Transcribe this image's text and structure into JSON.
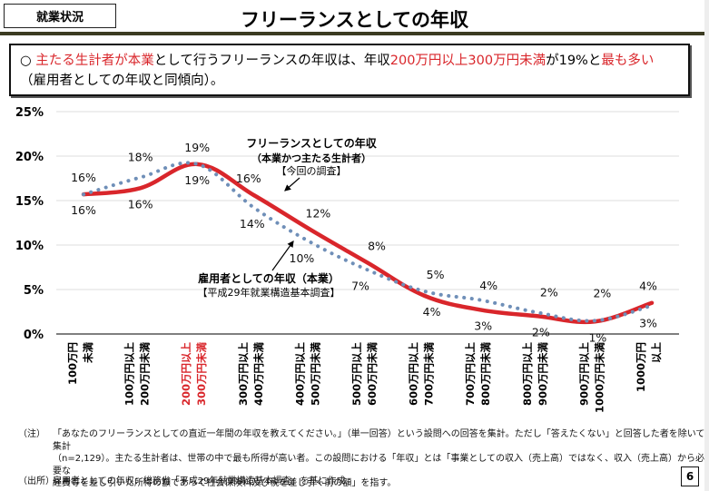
{
  "header": {
    "category": "就業状況",
    "title": "フリーランスとしての年収"
  },
  "summary": {
    "bullet": "○",
    "segments": [
      {
        "text": "主たる生計者が本業",
        "highlight": true
      },
      {
        "text": "として行うフリーランスの年収は、年収",
        "highlight": false
      },
      {
        "text": "200万円以上300万円未満",
        "highlight": true
      },
      {
        "text": "が19%と",
        "highlight": false
      },
      {
        "text": "最も多い",
        "highlight": true
      },
      {
        "text": "（雇用者としての年収と同傾向）。",
        "highlight": false
      }
    ]
  },
  "colors": {
    "freelance": "#d9262b",
    "employee": "#6f8fb8",
    "highlight": "#d9262b",
    "rule": "#3b3b22"
  },
  "chart_data": {
    "type": "line",
    "title": "",
    "xlabel": "",
    "ylabel": "",
    "ylim": [
      0,
      25
    ],
    "yticks": [
      "0%",
      "5%",
      "10%",
      "15%",
      "20%",
      "25%"
    ],
    "ytick_values": [
      0,
      5,
      10,
      15,
      20,
      25
    ],
    "grid": true,
    "categories": [
      [
        "100万円",
        "未満"
      ],
      [
        "100万円以上",
        "200万円未満"
      ],
      [
        "200万円以上",
        "300万円未満"
      ],
      [
        "300万円以上",
        "400万円未満"
      ],
      [
        "400万円以上",
        "500万円未満"
      ],
      [
        "500万円以上",
        "600万円未満"
      ],
      [
        "600万円以上",
        "700万円未満"
      ],
      [
        "700万円以上",
        "800万円未満"
      ],
      [
        "800万円以上",
        "900万円未満"
      ],
      [
        "900万円以上",
        "1000万円未満"
      ],
      [
        "1000万円",
        "以上"
      ]
    ],
    "highlight_category_index": 2,
    "series": [
      {
        "name": "フリーランスとしての年収（本業かつ主たる生計者）【今回の調査】",
        "style": "solid",
        "values": [
          15.7,
          16.4,
          19.1,
          15.6,
          11.7,
          8.0,
          4.3,
          2.7,
          2.0,
          1.4,
          3.5
        ],
        "labels": [
          "16%",
          "16%",
          "19%",
          "16%",
          "12%",
          "8%",
          "4%",
          "3%",
          "2%",
          "1%",
          "4%"
        ]
      },
      {
        "name": "雇用者としての年収（本業）【平成29年就業構造基本調査】",
        "style": "dotted",
        "values": [
          15.7,
          17.6,
          19.1,
          14.2,
          10.3,
          7.2,
          4.8,
          3.8,
          2.4,
          1.5,
          3.2
        ],
        "labels": [
          "16%",
          "18%",
          "19%",
          "14%",
          "10%",
          "7%",
          "5%",
          "4%",
          "2%",
          "2%",
          "3%"
        ]
      }
    ],
    "annotations": {
      "freelance": {
        "line1": "フリーランスとしての年収",
        "line2": "（本業かつ主たる生計者）",
        "line3": "【今回の調査】"
      },
      "employee": {
        "line1": "雇用者としての年収（本業）",
        "line2": "【平成29年就業構造基本調査】"
      }
    }
  },
  "notes": {
    "note_tag": "（注）",
    "note_lines": [
      "「あなたのフリーランスとしての直近一年間の年収を教えてください。」（単一回答）という設問への回答を集計。ただし「答えたくない」と回答した者を除いて集計",
      "（n=2,129）。主たる生計者は、世帯の中で最も所得が高い者。この設問における「年収」とは「事業としての収入（売上高）ではなく、収入（売上高）から必要な",
      "経費等を差し引いた所得の額であって社会保険料及び税を差し引く前の額」を指す。"
    ],
    "source_tag": "（出所）",
    "source_text": "雇用者としての年収：総務省「平成29年就業構造基本調査」を基に作成。"
  },
  "page_number": "6"
}
